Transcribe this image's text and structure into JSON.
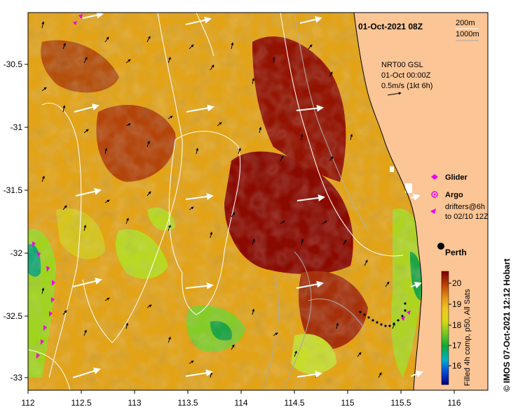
{
  "map": {
    "title": "01-Oct-2021 08Z",
    "legend": {
      "contour_200": "200m",
      "contour_1000": "1000m"
    },
    "current": {
      "line1": "NRT00 GSL",
      "line2": "01-Oct 00:00Z",
      "line3": "0.5m/s (1kt 6h)"
    },
    "markers": {
      "glider": "Glider",
      "argo": "Argo",
      "drifters_line1": "drifters@6h",
      "drifters_line2": "to 02/10 12Z"
    },
    "city": "Perth",
    "colorbar": {
      "caption": "Filled 4h comp, p50, All Sats",
      "ticks": [
        "16",
        "17",
        "18",
        "19",
        "20"
      ]
    },
    "credit": "© IMOS 07-Oct-2021 12:12 Hobart",
    "x_ticks": [
      "112",
      "112.5",
      "113",
      "113.5",
      "114",
      "114.5",
      "115",
      "115.5",
      "116"
    ],
    "y_ticks": [
      "-30.5",
      "-31",
      "-31.5",
      "-32",
      "-32.5",
      "-33"
    ],
    "colors": {
      "land": "#fcc596",
      "sst_high": "#8b0a00",
      "sst_mid": "#e2a214",
      "sst_low": "#9fd41a",
      "glider": "#ee00ee",
      "drifter": "#000000",
      "current_arrow": "#ffffff"
    }
  }
}
